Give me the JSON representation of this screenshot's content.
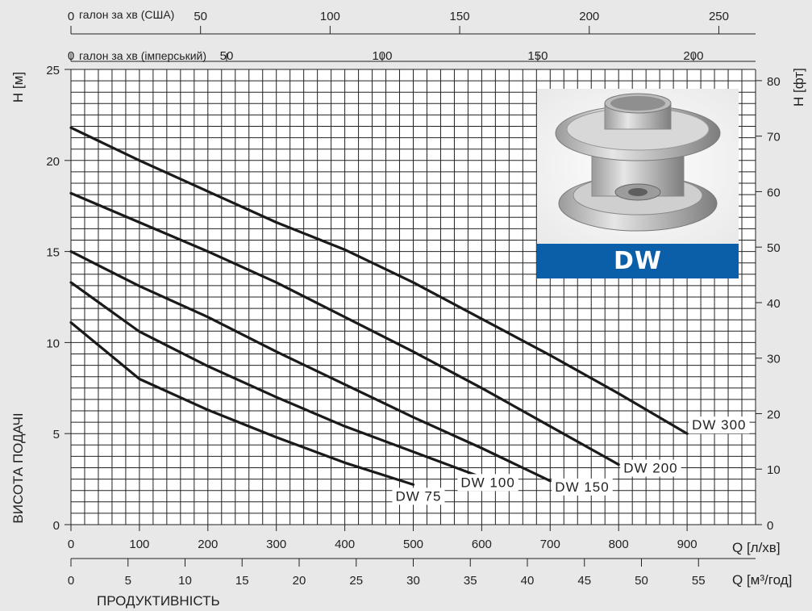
{
  "chart_data": {
    "type": "line",
    "xlabel": "Q [л/хв]",
    "ylabel": "H [м]",
    "y2label": "H [фт]",
    "x2label": "Q [м³/год]",
    "x_top1_label": "галон за хв (США)",
    "x_top2_label": "галон за хв (імперський)",
    "side_label": "ВИСОТА ПОДАЧІ",
    "bottom_label": "ПРОДУКТИВНІСТЬ",
    "xlim": [
      0,
      1000
    ],
    "ylim": [
      0,
      25
    ],
    "grid": true,
    "x_ticks": [
      0,
      100,
      200,
      300,
      400,
      500,
      600,
      700,
      800,
      900
    ],
    "y_ticks": [
      0,
      5,
      10,
      15,
      20,
      25
    ],
    "y2_ticks": [
      0,
      10,
      20,
      30,
      40,
      50,
      60,
      70,
      80
    ],
    "x2_ticks": [
      0,
      5,
      10,
      15,
      20,
      25,
      30,
      35,
      40,
      45,
      50,
      55
    ],
    "x_top1_ticks": [
      0,
      50,
      100,
      150,
      200,
      250
    ],
    "x_top2_ticks": [
      0,
      50,
      100,
      150,
      200
    ],
    "series": [
      {
        "name": "DW 75",
        "x": [
          0,
          100,
          200,
          300,
          400,
          500
        ],
        "y": [
          11.1,
          8.0,
          6.3,
          4.8,
          3.4,
          2.2
        ]
      },
      {
        "name": "DW 100",
        "x": [
          0,
          100,
          200,
          300,
          400,
          500,
          600
        ],
        "y": [
          13.3,
          10.6,
          8.7,
          7.0,
          5.4,
          4.0,
          2.6
        ]
      },
      {
        "name": "DW 150",
        "x": [
          0,
          100,
          200,
          300,
          400,
          500,
          600,
          700
        ],
        "y": [
          15.0,
          13.1,
          11.4,
          9.5,
          7.7,
          5.9,
          4.2,
          2.4
        ]
      },
      {
        "name": "DW 200",
        "x": [
          0,
          100,
          200,
          300,
          400,
          500,
          600,
          700,
          800
        ],
        "y": [
          18.2,
          16.6,
          15.0,
          13.3,
          11.4,
          9.5,
          7.5,
          5.4,
          3.3
        ]
      },
      {
        "name": "DW 300",
        "x": [
          0,
          100,
          200,
          300,
          400,
          500,
          600,
          700,
          800,
          900
        ],
        "y": [
          21.8,
          20.0,
          18.3,
          16.6,
          15.1,
          13.3,
          11.3,
          9.3,
          7.2,
          5.0
        ]
      }
    ]
  },
  "product": {
    "badge_text": "DW",
    "badge_color": "#0b5ea8"
  },
  "colors": {
    "background": "#e8e8e8",
    "grid": "#222222",
    "curve": "#1a1a1a"
  }
}
